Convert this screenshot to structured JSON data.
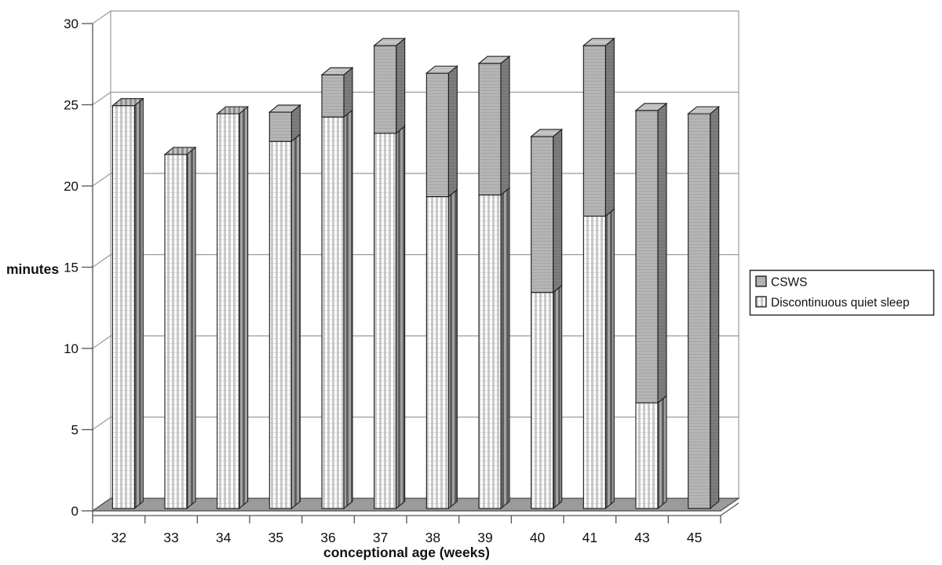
{
  "figure": {
    "background": "#ffffff",
    "description": "3D stacked bar chart of quiet sleep composition by conceptional age"
  },
  "chart_data": {
    "type": "bar",
    "stacked": true,
    "style": "3d-column",
    "title": "",
    "xlabel": "conceptional age (weeks)",
    "ylabel": "minutes",
    "ylim": [
      0,
      30
    ],
    "yticks": [
      0,
      5,
      10,
      15,
      20,
      25,
      30
    ],
    "grid": "horizontal-back-wall",
    "categories": [
      "32",
      "33",
      "34",
      "35",
      "36",
      "37",
      "38",
      "39",
      "40",
      "41",
      "43",
      "45"
    ],
    "series": [
      {
        "name": "Discontinuous quiet sleep",
        "style": "striped",
        "values": [
          24.8,
          21.8,
          24.3,
          22.6,
          24.1,
          23.1,
          19.2,
          19.3,
          13.3,
          18.0,
          6.5,
          0
        ]
      },
      {
        "name": "CSWS",
        "style": "solid-gray",
        "values": [
          0,
          0,
          0,
          1.8,
          2.6,
          5.4,
          7.6,
          8.1,
          9.6,
          10.5,
          18.0,
          24.3
        ]
      }
    ],
    "stack_totals": [
      24.8,
      21.8,
      24.3,
      24.4,
      26.7,
      28.5,
      26.8,
      27.4,
      22.9,
      28.5,
      24.5,
      24.3
    ],
    "legend": {
      "position": "right",
      "entries": [
        {
          "label": "CSWS",
          "style": "solid-gray"
        },
        {
          "label": "Discontinuous quiet sleep",
          "style": "striped"
        }
      ]
    },
    "colors": {
      "csws_front": "#b5b5b5",
      "csws_side": "#7d7d7d",
      "csws_top": "#c6c6c6",
      "stripe_light": "#ffffff",
      "stripe_dark": "#c9c9c9",
      "stripe_side_bg": "#a2a2a2",
      "stripe_side_dark": "#5e5e5e",
      "stripe_top_bg": "#c2c2c2",
      "stripe_top_dark": "#8f8f8f",
      "floor": "#9c9c9c",
      "gridline": "#9a9a9a",
      "axis": "#555555",
      "bar_outline": "#1b1b1b",
      "text": "#111111"
    }
  }
}
